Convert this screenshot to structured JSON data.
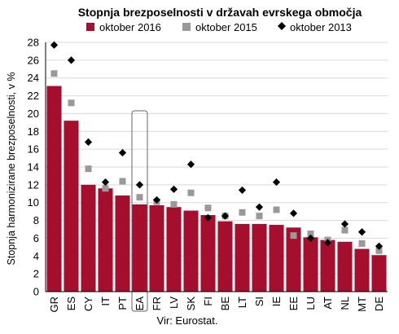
{
  "chart_data": {
    "type": "bar",
    "title": "Stopnja brezposelnosti v državah evrskega območja",
    "ylabel": "Stopnja harmonizirane brezposelnosti, v %",
    "xlabel": "",
    "source": "Vir: Eurostat.",
    "ylim": [
      0,
      28
    ],
    "yticks": [
      0,
      2,
      4,
      6,
      8,
      10,
      12,
      14,
      16,
      18,
      20,
      22,
      24,
      26,
      28
    ],
    "grid": true,
    "legend_position": "top",
    "categories": [
      "GR",
      "ES",
      "CY",
      "IT",
      "PT",
      "EA",
      "FR",
      "LV",
      "SK",
      "FI",
      "BE",
      "LT",
      "SI",
      "IE",
      "EE",
      "LU",
      "AT",
      "NL",
      "MT",
      "DE"
    ],
    "highlighted_category": "EA",
    "series": [
      {
        "name": "oktober 2016",
        "kind": "bar",
        "color": "#a50f2d",
        "values": [
          23.1,
          19.2,
          12.0,
          11.6,
          10.8,
          9.8,
          9.7,
          9.5,
          9.1,
          8.6,
          7.9,
          7.6,
          7.6,
          7.5,
          7.2,
          6.1,
          5.8,
          5.6,
          4.8,
          4.1
        ]
      },
      {
        "name": "oktober 2015",
        "kind": "square",
        "color": "#999999",
        "values": [
          24.5,
          21.2,
          13.8,
          11.6,
          12.4,
          10.6,
          10.1,
          9.8,
          11.1,
          9.4,
          8.5,
          8.9,
          8.5,
          9.2,
          6.3,
          6.5,
          5.8,
          6.9,
          5.4,
          4.6
        ]
      },
      {
        "name": "oktober 2013",
        "kind": "diamond",
        "color": "#000000",
        "values": [
          27.7,
          26.0,
          16.8,
          12.3,
          15.6,
          12.0,
          10.3,
          11.5,
          14.3,
          8.3,
          8.5,
          11.4,
          9.5,
          12.3,
          8.8,
          6.0,
          5.5,
          7.6,
          6.7,
          5.1
        ]
      }
    ]
  }
}
